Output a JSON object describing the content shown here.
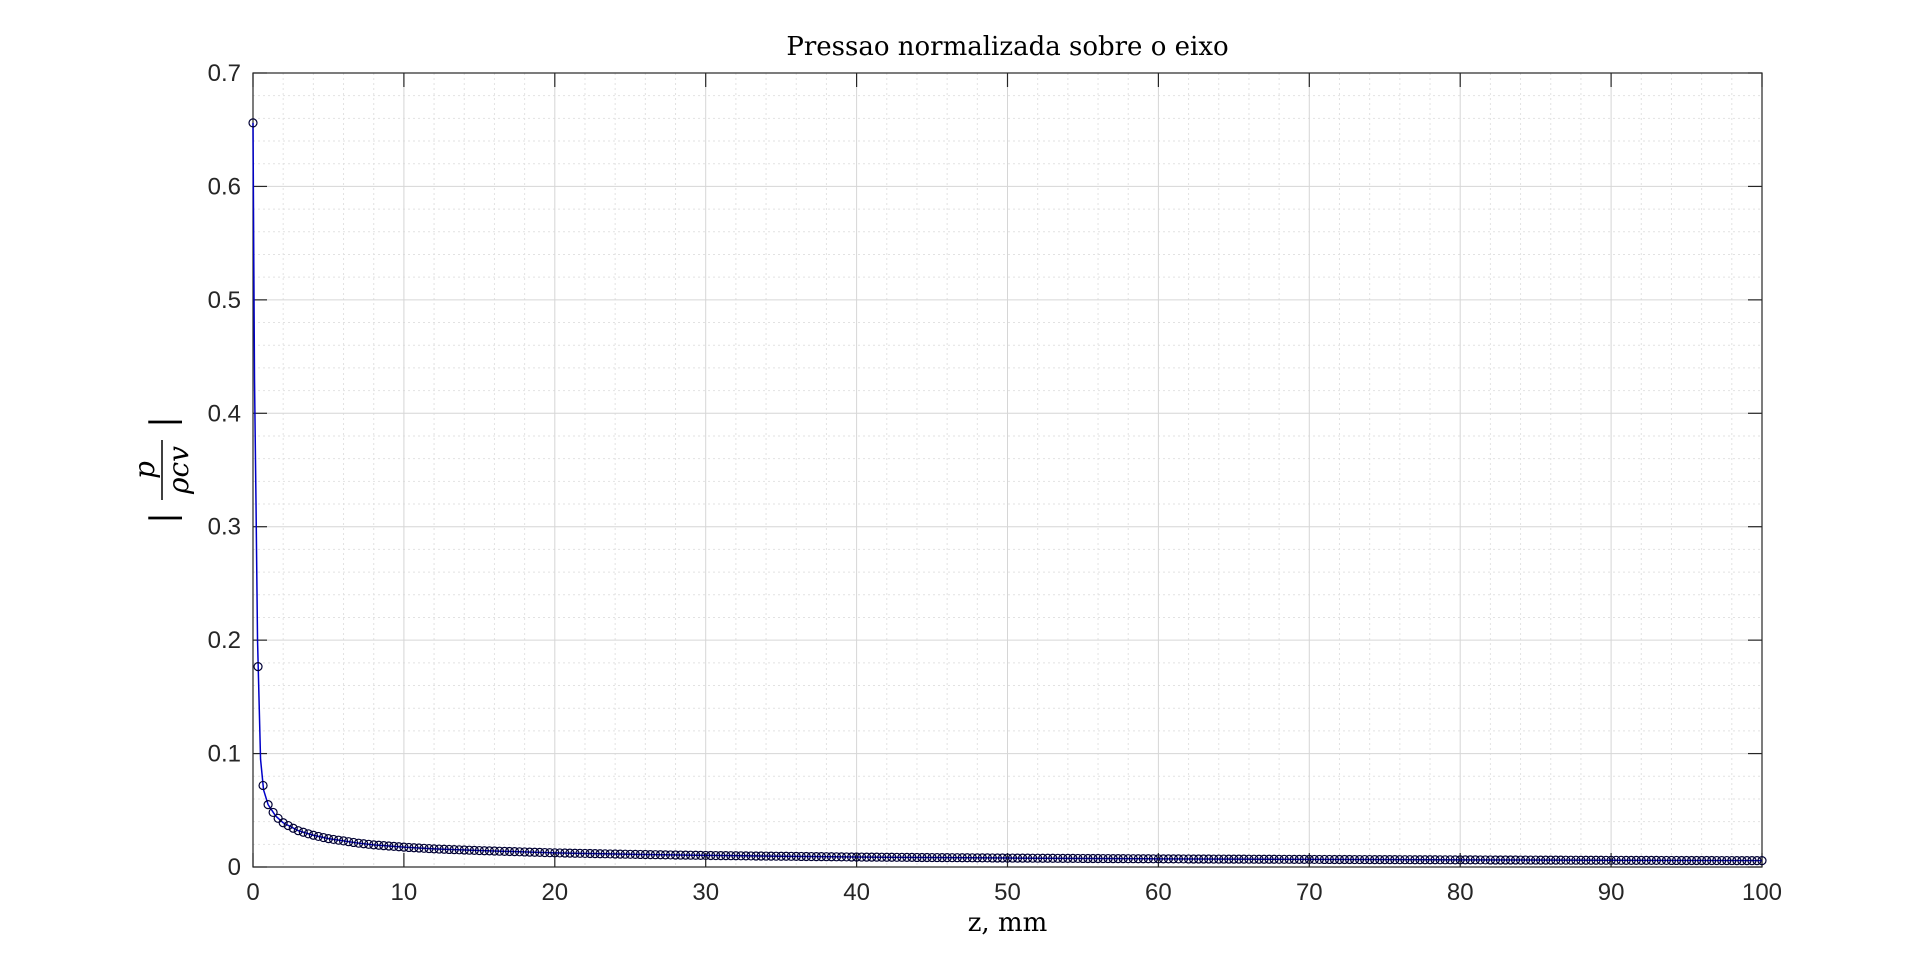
{
  "chart_data": {
    "type": "line",
    "title": "Pressao normalizada sobre o eixo",
    "xlabel": "z, mm",
    "ylabel": {
      "numerator": "p",
      "denominator": "ρcv",
      "bar_left": "|",
      "bar_right": "|"
    },
    "xlim": [
      0,
      100
    ],
    "ylim": [
      0,
      0.7
    ],
    "xticks": [
      "0",
      "10",
      "20",
      "30",
      "40",
      "50",
      "60",
      "70",
      "80",
      "90",
      "100"
    ],
    "yticks": [
      "0",
      "0.1",
      "0.2",
      "0.3",
      "0.4",
      "0.5",
      "0.6",
      "0.7"
    ],
    "grid": true,
    "minor_grid": true,
    "series": [
      {
        "marker": "circle",
        "color": "#0000c8",
        "marker_color": "#000033",
        "x": [
          0,
          0.05,
          0.1,
          0.2,
          0.3,
          0.5,
          0.7,
          1.0,
          1.5,
          2,
          3,
          4,
          5,
          6,
          7,
          8,
          9,
          10,
          12,
          15,
          20,
          25,
          30,
          35,
          40,
          50,
          60,
          70,
          80,
          90,
          100
        ],
        "y": [
          0.656,
          0.54,
          0.43,
          0.32,
          0.2,
          0.095,
          0.068,
          0.055,
          0.045,
          0.039,
          0.032,
          0.028,
          0.025,
          0.023,
          0.021,
          0.0195,
          0.0185,
          0.0175,
          0.016,
          0.0145,
          0.0125,
          0.0112,
          0.0102,
          0.0095,
          0.0088,
          0.0079,
          0.0072,
          0.0067,
          0.0063,
          0.0059,
          0.0056
        ]
      }
    ]
  }
}
